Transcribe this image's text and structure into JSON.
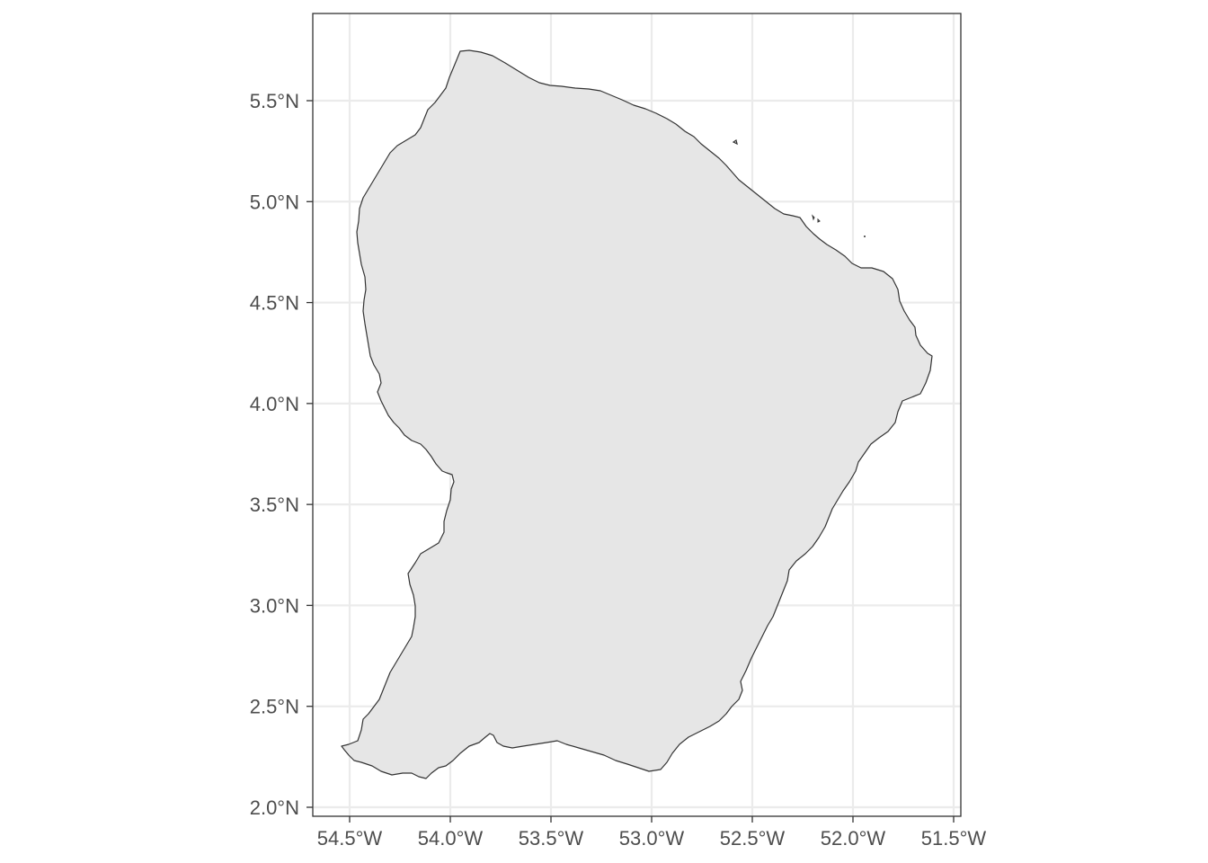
{
  "map": {
    "x_ticks": [
      "54.5°W",
      "54.0°W",
      "53.5°W",
      "53.0°W",
      "52.5°W",
      "52.0°W",
      "51.5°W"
    ],
    "y_ticks": [
      "5.5°N",
      "5.0°N",
      "4.5°N",
      "4.0°N",
      "3.5°N",
      "3.0°N",
      "2.5°N",
      "2.0°N"
    ],
    "x_tick_values": [
      -54.5,
      -54.0,
      -53.5,
      -53.0,
      -52.5,
      -52.0,
      -51.5
    ],
    "y_tick_values": [
      5.5,
      5.0,
      4.5,
      4.0,
      3.5,
      3.0,
      2.5,
      2.0
    ],
    "lon_range": [
      -54.67,
      -51.45
    ],
    "lat_range": [
      1.95,
      5.93
    ],
    "region_fill": "#e6e6e6",
    "region_stroke": "#333333",
    "grid_color": "#ebebeb",
    "panel_border": "#333333",
    "background": "#ffffff"
  }
}
